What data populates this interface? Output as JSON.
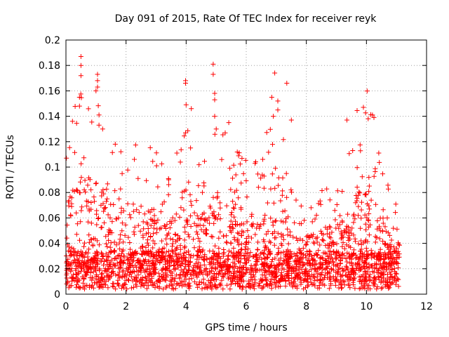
{
  "chart_data": {
    "type": "scatter",
    "title": "Day 091 of 2015, Rate Of TEC Index for receiver reyk",
    "xlabel": "GPS time / hours",
    "ylabel": "ROTI / TECUs",
    "xlim": [
      0,
      12
    ],
    "ylim": [
      0,
      0.2
    ],
    "xticks": [
      0,
      2,
      4,
      6,
      8,
      10,
      12
    ],
    "xtick_labels": [
      "0",
      "2",
      "4",
      "6",
      "8",
      "10",
      "12"
    ],
    "yticks": [
      0,
      0.02,
      0.04,
      0.06,
      0.08,
      0.1,
      0.12,
      0.14,
      0.16,
      0.18,
      0.2
    ],
    "ytick_labels": [
      "0",
      "0.02",
      "0.04",
      "0.06",
      "0.08",
      "0.1",
      "0.12",
      "0.14",
      "0.16",
      "0.18",
      "0.2"
    ],
    "grid": true,
    "marker": "+",
    "series": [
      {
        "name": "ROTI",
        "color": "#ff0000",
        "time_range": [
          0.0,
          11.1
        ],
        "notable_points": [
          {
            "x": 0.5,
            "y": 0.187
          },
          {
            "x": 0.5,
            "y": 0.18
          },
          {
            "x": 0.5,
            "y": 0.172
          },
          {
            "x": 0.45,
            "y": 0.155
          },
          {
            "x": 0.45,
            "y": 0.148
          },
          {
            "x": 1.05,
            "y": 0.173
          },
          {
            "x": 1.05,
            "y": 0.168
          },
          {
            "x": 1.05,
            "y": 0.163
          },
          {
            "x": 1.0,
            "y": 0.16
          },
          {
            "x": 1.1,
            "y": 0.141
          },
          {
            "x": 1.1,
            "y": 0.133
          },
          {
            "x": 3.98,
            "y": 0.168
          },
          {
            "x": 3.98,
            "y": 0.166
          },
          {
            "x": 4.0,
            "y": 0.149
          },
          {
            "x": 3.98,
            "y": 0.127
          },
          {
            "x": 4.9,
            "y": 0.181
          },
          {
            "x": 4.9,
            "y": 0.173
          },
          {
            "x": 4.95,
            "y": 0.158
          },
          {
            "x": 4.95,
            "y": 0.153
          },
          {
            "x": 4.95,
            "y": 0.14
          },
          {
            "x": 5.0,
            "y": 0.13
          },
          {
            "x": 6.85,
            "y": 0.155
          },
          {
            "x": 7.05,
            "y": 0.152
          },
          {
            "x": 7.05,
            "y": 0.145
          },
          {
            "x": 6.9,
            "y": 0.14
          },
          {
            "x": 7.35,
            "y": 0.166
          },
          {
            "x": 7.5,
            "y": 0.137
          },
          {
            "x": 9.9,
            "y": 0.147
          },
          {
            "x": 10.2,
            "y": 0.141
          },
          {
            "x": 10.25,
            "y": 0.139
          },
          {
            "x": 9.35,
            "y": 0.137
          }
        ]
      }
    ]
  }
}
